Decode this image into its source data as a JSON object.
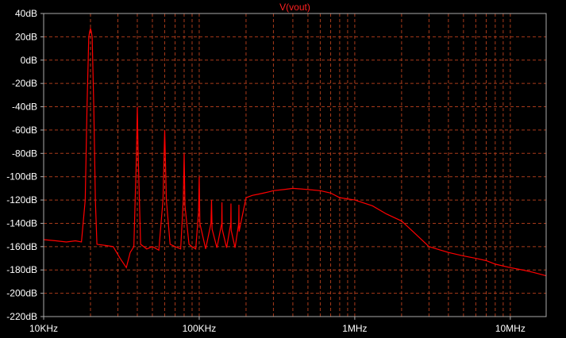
{
  "window": {
    "background": "#000000"
  },
  "chart_data": {
    "type": "line",
    "title": "V(vout)",
    "xlabel": "",
    "ylabel": "",
    "x_scale": "log",
    "xlim": [
      10000,
      17000000
    ],
    "ylim": [
      -220,
      40
    ],
    "x_ticks": [
      {
        "value": 10000,
        "label": "10KHz"
      },
      {
        "value": 100000,
        "label": "100KHz"
      },
      {
        "value": 1000000,
        "label": "1MHz"
      },
      {
        "value": 10000000,
        "label": "10MHz"
      }
    ],
    "y_ticks": [
      {
        "value": 40,
        "label": "40dB"
      },
      {
        "value": 20,
        "label": "20dB"
      },
      {
        "value": 0,
        "label": "0dB"
      },
      {
        "value": -20,
        "label": "-20dB"
      },
      {
        "value": -40,
        "label": "-40dB"
      },
      {
        "value": -60,
        "label": "-60dB"
      },
      {
        "value": -80,
        "label": "-80dB"
      },
      {
        "value": -100,
        "label": "-100dB"
      },
      {
        "value": -120,
        "label": "-120dB"
      },
      {
        "value": -140,
        "label": "-140dB"
      },
      {
        "value": -160,
        "label": "-160dB"
      },
      {
        "value": -180,
        "label": "-180dB"
      },
      {
        "value": -200,
        "label": "-200dB"
      },
      {
        "value": -220,
        "label": "-220dB"
      }
    ],
    "grid": true,
    "grid_color": "#a83a1a",
    "line_color": "#ff0000",
    "title_color": "#ff2020",
    "text_color": "#ffffff",
    "axis_color": "#aaaaaa",
    "series": [
      {
        "name": "V(vout)",
        "x": [
          10000,
          12000,
          14000,
          16000,
          17500,
          18500,
          19000,
          19500,
          19800,
          20000,
          20200,
          20500,
          21000,
          21500,
          22000,
          25000,
          28000,
          31000,
          34000,
          36000,
          38000,
          39500,
          40000,
          40500,
          42000,
          46000,
          50000,
          55000,
          58500,
          60000,
          61500,
          65000,
          70000,
          76000,
          79000,
          80000,
          81000,
          86000,
          90000,
          95000,
          99000,
          100000,
          101000,
          110000,
          119000,
          120000,
          121000,
          130000,
          139500,
          140000,
          140500,
          150000,
          159500,
          160000,
          160500,
          170000,
          179500,
          180000,
          180500,
          200000,
          220000,
          240000,
          260000,
          280000,
          300000,
          350000,
          400000,
          500000,
          600000,
          700000,
          800000,
          1000000,
          1300000,
          1600000,
          2000000,
          2500000,
          3000000,
          4000000,
          5000000,
          6000000,
          7000000,
          8000000,
          10000000,
          12000000,
          14000000,
          17000000
        ],
        "values": [
          -154,
          -155,
          -156,
          -155,
          -156,
          -120,
          -40,
          20,
          25,
          27,
          25,
          20,
          -40,
          -120,
          -158,
          -159,
          -160,
          -170,
          -178,
          -165,
          -160,
          -80,
          -40,
          -80,
          -158,
          -162,
          -160,
          -163,
          -120,
          -60,
          -120,
          -158,
          -160,
          -162,
          -120,
          -80,
          -125,
          -158,
          -160,
          -162,
          -130,
          -100,
          -140,
          -162,
          -140,
          -120,
          -145,
          -161,
          -140,
          -122,
          -145,
          -161,
          -140,
          -123,
          -146,
          -161,
          -140,
          -124,
          -147,
          -118,
          -116,
          -115,
          -114,
          -113,
          -112,
          -111,
          -110,
          -111,
          -112,
          -114,
          -118,
          -120,
          -125,
          -132,
          -138,
          -150,
          -160,
          -165,
          -168,
          -170,
          -172,
          -175,
          -178,
          -180,
          -182,
          -185
        ]
      }
    ]
  }
}
